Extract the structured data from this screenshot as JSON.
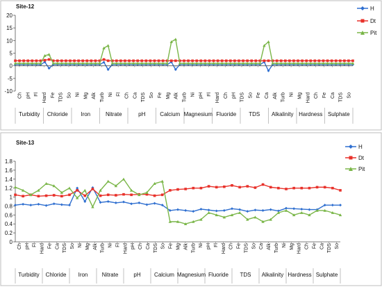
{
  "chart_data": [
    {
      "type": "line",
      "title": "Site-12",
      "ylim": [
        -10,
        20
      ],
      "yticks": [
        -10,
        -5,
        0,
        5,
        10,
        15,
        20
      ],
      "grid": false,
      "legend": "top-right",
      "colors": {
        "H": "#2f6fd0",
        "Dt": "#e8312a",
        "Pit": "#7ab648"
      },
      "tick_labels": [
        "Ch",
        "pH",
        "Fl",
        "Hard",
        "Fe",
        "TDS",
        "So",
        "Ni",
        "Mg",
        "Alk",
        "Turb",
        "Ni",
        "Fl",
        "Ch",
        "Ca",
        "TDS",
        "So",
        "Fe",
        "Mg",
        "Alk",
        "Turb",
        "Ni",
        "pH",
        "Fl",
        "Hard",
        "Ch",
        "pH",
        "TDS",
        "So",
        "Fe",
        "Ca",
        "Alk",
        "Turb",
        "Ni",
        "Mg",
        "Hard",
        "Ch",
        "Fe",
        "Ca",
        "TDS",
        "So"
      ],
      "groups": [
        "Turbidity",
        "Chloride",
        "Iron",
        "Nitrate",
        "pH",
        "Calcium",
        "Magnesium",
        "Fluoride",
        "TDS",
        "Alkalinity",
        "Hardness",
        "Sulphate"
      ],
      "x": [
        0,
        0.5,
        1,
        1.5,
        2,
        2.5,
        3,
        3.5,
        4,
        4.5,
        5,
        5.5,
        6,
        6.5,
        7,
        7.5,
        8,
        8.5,
        9,
        9.5,
        10,
        10.5,
        11,
        11.5,
        12,
        12.5,
        13,
        13.5,
        14,
        14.5,
        15,
        15.5,
        16,
        16.5,
        17,
        17.5,
        18,
        18.5,
        19,
        19.5,
        20,
        20.5,
        21,
        21.5,
        22,
        22.5,
        23,
        23.5,
        24,
        24.5,
        25,
        25.5,
        26,
        26.5,
        27,
        27.5,
        28,
        28.5,
        29,
        29.5,
        30,
        30.5,
        31,
        31.5,
        32,
        32.5,
        33,
        33.5,
        34,
        34.5,
        35,
        35.5,
        36,
        36.5,
        37,
        37.5,
        38,
        38.5,
        39,
        39.5,
        40
      ],
      "series": [
        {
          "name": "H",
          "values": [
            0.5,
            0.5,
            0.5,
            0.5,
            0.5,
            0.5,
            0.4,
            1.5,
            -1.0,
            0.5,
            0.5,
            0.5,
            0.5,
            0.5,
            0.5,
            0.5,
            0.5,
            0.5,
            0.5,
            0.5,
            0.5,
            1.4,
            -1.5,
            0.5,
            0.5,
            0.5,
            0.5,
            0.5,
            0.5,
            0.5,
            0.5,
            0.5,
            0.5,
            0.5,
            0.5,
            0.5,
            0.5,
            1.5,
            -1.5,
            0.5,
            0.5,
            0.5,
            0.5,
            0.5,
            0.5,
            0.5,
            0.5,
            0.5,
            0.5,
            0.5,
            0.5,
            0.5,
            0.5,
            0.5,
            0.5,
            0.5,
            0.5,
            0.5,
            0.5,
            1.5,
            -2.0,
            0.5,
            0.5,
            0.5,
            0.5,
            0.5,
            0.5,
            0.5,
            0.5,
            0.5,
            0.5,
            0.5,
            0.5,
            0.5,
            0.5,
            0.5,
            0.5,
            0.5,
            0.5,
            0.5,
            0.5
          ]
        },
        {
          "name": "Dt",
          "values": [
            2.0,
            2.0,
            2.0,
            2.0,
            2.0,
            2.0,
            2.0,
            2.2,
            2.5,
            2.0,
            2.0,
            2.0,
            2.0,
            2.0,
            2.0,
            2.0,
            2.0,
            2.0,
            2.0,
            2.0,
            2.0,
            2.5,
            2.0,
            2.0,
            2.0,
            2.0,
            2.0,
            2.0,
            2.0,
            2.0,
            2.0,
            2.0,
            2.0,
            2.0,
            2.0,
            2.0,
            2.0,
            2.0,
            2.0,
            2.0,
            2.0,
            2.0,
            2.0,
            2.0,
            2.0,
            2.0,
            2.0,
            2.0,
            2.0,
            2.0,
            2.0,
            2.0,
            2.0,
            2.0,
            2.0,
            2.0,
            2.0,
            2.0,
            2.0,
            2.0,
            2.0,
            2.0,
            2.0,
            2.0,
            2.0,
            2.0,
            2.0,
            2.0,
            2.0,
            2.0,
            2.0,
            2.0,
            2.0,
            2.0,
            2.0,
            2.0,
            2.0,
            2.0,
            2.0,
            2.0,
            2.0
          ]
        },
        {
          "name": "Pit",
          "values": [
            1.0,
            1.0,
            1.0,
            1.0,
            1.0,
            1.0,
            1.0,
            4.0,
            4.5,
            1.0,
            1.0,
            1.0,
            1.0,
            1.0,
            1.0,
            1.0,
            1.0,
            1.0,
            1.0,
            1.0,
            1.0,
            7.0,
            8.0,
            1.0,
            1.0,
            1.0,
            1.0,
            1.0,
            1.0,
            1.0,
            1.0,
            1.0,
            1.0,
            1.0,
            1.0,
            1.0,
            1.0,
            9.5,
            10.5,
            1.0,
            1.0,
            1.0,
            1.0,
            1.0,
            1.0,
            1.0,
            1.0,
            1.0,
            1.0,
            1.0,
            1.0,
            1.0,
            1.0,
            1.0,
            1.0,
            1.0,
            1.0,
            1.0,
            1.0,
            8.0,
            9.5,
            1.0,
            1.0,
            1.0,
            1.0,
            1.0,
            1.0,
            1.0,
            1.0,
            1.0,
            1.0,
            1.0,
            1.0,
            1.0,
            1.0,
            1.0,
            1.0,
            1.0,
            1.0,
            1.0,
            1.0
          ]
        }
      ]
    },
    {
      "type": "line",
      "title": "Site-13",
      "ylim": [
        0,
        1.8
      ],
      "yticks": [
        0,
        0.2,
        0.4,
        0.6,
        0.8,
        1,
        1.2,
        1.4,
        1.6,
        1.8
      ],
      "grid": false,
      "legend": "top-right",
      "colors": {
        "H": "#2f6fd0",
        "Dt": "#e8312a",
        "Pit": "#7ab648"
      },
      "tick_labels": [
        "Ch",
        "pH",
        "Fl",
        "Hard",
        "Fe",
        "Ca",
        "TDS",
        "So",
        "Ni",
        "Mg",
        "Alk",
        "Turb",
        "Ni",
        "Fl",
        "Hard",
        "pH",
        "Ch",
        "Ca",
        "TDS",
        "So",
        "Fe",
        "Mg",
        "Alk",
        "Turb",
        "Ni",
        "pH",
        "Fl",
        "Hard",
        "Ch",
        "Fe",
        "TDS",
        "So",
        "Ca",
        "Alk",
        "Turb",
        "Ni",
        "Mg",
        "Hard",
        "Ch",
        "Fe",
        "Ca",
        "TDS",
        "So"
      ],
      "groups": [
        "Turbidity",
        "Chloride",
        "Iron",
        "Nitrate",
        "pH",
        "Calcium",
        "Magnesium",
        "Fluoride",
        "TDS",
        "Alkalinity",
        "Hardness",
        "Sulphate"
      ],
      "x": [
        0,
        1,
        2,
        3,
        4,
        5,
        6,
        7,
        8,
        9,
        10,
        11,
        12,
        13,
        14,
        15,
        16,
        17,
        18,
        19,
        20,
        21,
        22,
        23,
        24,
        25,
        26,
        27,
        28,
        29,
        30,
        31,
        32,
        33,
        34,
        35,
        36,
        37,
        38,
        39,
        40,
        41,
        42
      ],
      "series": [
        {
          "name": "H",
          "values": [
            0.82,
            0.84,
            0.82,
            0.84,
            0.81,
            0.85,
            0.83,
            0.82,
            1.2,
            0.9,
            1.21,
            0.88,
            0.9,
            0.87,
            0.89,
            0.85,
            0.87,
            0.83,
            0.86,
            0.82,
            0.7,
            0.72,
            0.7,
            0.68,
            0.73,
            0.71,
            0.69,
            0.7,
            0.74,
            0.72,
            0.68,
            0.71,
            0.7,
            0.72,
            0.69,
            0.75,
            0.74,
            0.73,
            0.72,
            0.72,
            0.82,
            0.82,
            0.82
          ]
        },
        {
          "name": "Dt",
          "values": [
            1.05,
            1.02,
            1.05,
            1.02,
            1.03,
            1.04,
            1.02,
            1.05,
            1.15,
            1.03,
            1.18,
            1.03,
            1.05,
            1.04,
            1.06,
            1.05,
            1.06,
            1.06,
            1.03,
            1.05,
            1.15,
            1.17,
            1.18,
            1.2,
            1.2,
            1.24,
            1.22,
            1.23,
            1.26,
            1.22,
            1.24,
            1.21,
            1.28,
            1.22,
            1.2,
            1.18,
            1.2,
            1.2,
            1.2,
            1.22,
            1.22,
            1.2,
            1.15
          ]
        },
        {
          "name": "Pit",
          "values": [
            1.22,
            1.15,
            1.05,
            1.15,
            1.3,
            1.25,
            1.1,
            1.2,
            0.98,
            1.15,
            0.78,
            1.15,
            1.35,
            1.25,
            1.4,
            1.15,
            1.05,
            1.1,
            1.3,
            1.35,
            0.45,
            0.45,
            0.4,
            0.45,
            0.5,
            0.65,
            0.6,
            0.55,
            0.6,
            0.65,
            0.5,
            0.55,
            0.45,
            0.5,
            0.65,
            0.7,
            0.6,
            0.65,
            0.6,
            0.7,
            0.7,
            0.65,
            0.6
          ]
        }
      ]
    }
  ]
}
